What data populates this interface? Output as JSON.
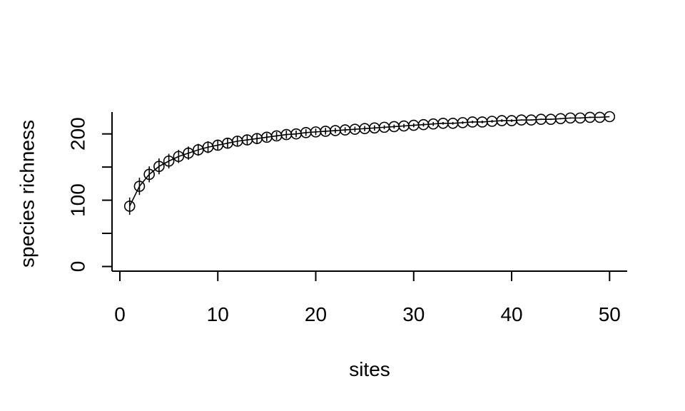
{
  "chart_data": {
    "type": "line",
    "title": "",
    "xlabel": "sites",
    "ylabel": "species richness",
    "xlim": [
      -0.8,
      51.8
    ],
    "ylim": [
      -7,
      233
    ],
    "xticks": [
      0,
      10,
      20,
      30,
      40,
      50
    ],
    "yticks": [
      0,
      50,
      100,
      150,
      200
    ],
    "yticklabels": [
      "0",
      "",
      "100",
      "",
      "200"
    ],
    "grid": false,
    "series": [
      {
        "marker": "open-circle",
        "line": true,
        "error_bars": true,
        "x": [
          1,
          2,
          3,
          4,
          5,
          6,
          7,
          8,
          9,
          10,
          11,
          12,
          13,
          14,
          15,
          16,
          17,
          18,
          19,
          20,
          21,
          22,
          23,
          24,
          25,
          26,
          27,
          28,
          29,
          30,
          31,
          32,
          33,
          34,
          35,
          36,
          37,
          38,
          39,
          40,
          41,
          42,
          43,
          44,
          45,
          46,
          47,
          48,
          49,
          50
        ],
        "y": [
          91,
          121,
          139,
          151,
          159,
          166,
          171,
          176,
          180,
          183,
          186,
          189,
          191,
          193,
          195,
          197,
          199,
          200,
          202,
          203,
          204,
          205,
          206,
          207,
          208,
          209,
          210,
          211,
          212,
          213,
          214,
          215,
          216,
          216,
          217,
          218,
          218,
          219,
          220,
          220,
          221,
          221,
          222,
          222,
          223,
          224,
          224,
          225,
          225,
          226
        ],
        "err": [
          13,
          13,
          12,
          12,
          11,
          10,
          10,
          9,
          9,
          8,
          8,
          7,
          7,
          7,
          6,
          6,
          6,
          5,
          5,
          5,
          5,
          4,
          4,
          4,
          4,
          4,
          3,
          3,
          3,
          3,
          3,
          3,
          2,
          2,
          2,
          2,
          2,
          2,
          2,
          2,
          1,
          1,
          1,
          1,
          1,
          1,
          1,
          1,
          0,
          0
        ]
      }
    ]
  }
}
